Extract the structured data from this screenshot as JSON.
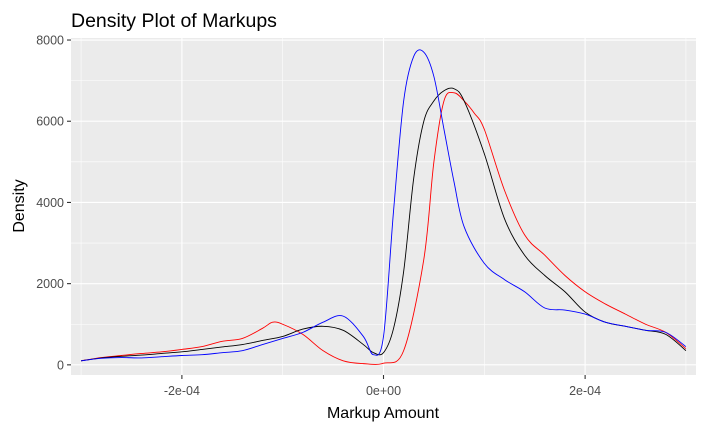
{
  "chart_data": {
    "type": "line",
    "title": "Density Plot of Markups",
    "xlabel": "Markup Amount",
    "ylabel": "Density",
    "xlim": [
      -0.00031,
      0.00031
    ],
    "ylim": [
      -250,
      8050
    ],
    "x_ticks": [
      {
        "value": -0.0002,
        "label": "-2e-04"
      },
      {
        "value": 0,
        "label": "0e+00"
      },
      {
        "value": 0.0002,
        "label": "2e-04"
      }
    ],
    "y_ticks": [
      {
        "value": 0,
        "label": "0"
      },
      {
        "value": 2000,
        "label": "2000"
      },
      {
        "value": 4000,
        "label": "4000"
      },
      {
        "value": 6000,
        "label": "6000"
      },
      {
        "value": 8000,
        "label": "8000"
      }
    ],
    "grid": true,
    "legend": "none",
    "series": [
      {
        "color": "#FF0000",
        "x": [
          -0.0003,
          -0.00028,
          -0.00026,
          -0.00024,
          -0.00022,
          -0.0002,
          -0.00018,
          -0.00016,
          -0.00014,
          -0.00012,
          -0.00011,
          -0.0001,
          -8e-05,
          -6e-05,
          -4e-05,
          -2e-05,
          0,
          2e-05,
          4e-05,
          5e-05,
          6e-05,
          7e-05,
          8e-05,
          9e-05,
          0.0001,
          0.00012,
          0.00014,
          0.00016,
          0.00018,
          0.0002,
          0.00022,
          0.00024,
          0.00026,
          0.00028,
          0.0003
        ],
        "y": [
          100,
          180,
          230,
          280,
          320,
          380,
          450,
          580,
          650,
          900,
          1050,
          1000,
          750,
          350,
          100,
          30,
          40,
          350,
          2600,
          5000,
          6500,
          6700,
          6500,
          6200,
          5800,
          4300,
          3200,
          2700,
          2200,
          1800,
          1500,
          1250,
          1000,
          800,
          400
        ]
      },
      {
        "color": "#000000",
        "x": [
          -0.0003,
          -0.00028,
          -0.00026,
          -0.00024,
          -0.00022,
          -0.0002,
          -0.00018,
          -0.00016,
          -0.00014,
          -0.00012,
          -0.0001,
          -8e-05,
          -6e-05,
          -4e-05,
          -2e-05,
          -1e-05,
          0,
          1e-05,
          2e-05,
          3e-05,
          4e-05,
          5e-05,
          6e-05,
          7e-05,
          8e-05,
          0.0001,
          0.00012,
          0.00014,
          0.00016,
          0.00018,
          0.0002,
          0.00022,
          0.00024,
          0.00026,
          0.00028,
          0.0003
        ],
        "y": [
          100,
          170,
          210,
          240,
          280,
          320,
          380,
          440,
          500,
          600,
          700,
          880,
          950,
          850,
          500,
          300,
          300,
          900,
          2300,
          4600,
          6000,
          6500,
          6750,
          6800,
          6500,
          5200,
          3600,
          2700,
          2200,
          1800,
          1300,
          1050,
          950,
          850,
          750,
          350
        ]
      },
      {
        "color": "#0000FF",
        "x": [
          -0.0003,
          -0.00028,
          -0.00026,
          -0.00024,
          -0.00022,
          -0.0002,
          -0.00018,
          -0.00016,
          -0.00014,
          -0.00012,
          -0.0001,
          -8e-05,
          -6e-05,
          -4e-05,
          -2e-05,
          -1e-05,
          0,
          1e-05,
          2e-05,
          3e-05,
          4e-05,
          5e-05,
          6e-05,
          7e-05,
          8e-05,
          0.0001,
          0.00012,
          0.00014,
          0.00016,
          0.00018,
          0.0002,
          0.00022,
          0.00024,
          0.00026,
          0.00028,
          0.0003
        ],
        "y": [
          100,
          160,
          180,
          170,
          200,
          230,
          250,
          300,
          350,
          500,
          650,
          800,
          1050,
          1200,
          700,
          250,
          700,
          3800,
          6500,
          7600,
          7700,
          7100,
          5800,
          4500,
          3400,
          2500,
          2100,
          1800,
          1400,
          1350,
          1250,
          1050,
          950,
          850,
          800,
          450
        ]
      }
    ]
  }
}
